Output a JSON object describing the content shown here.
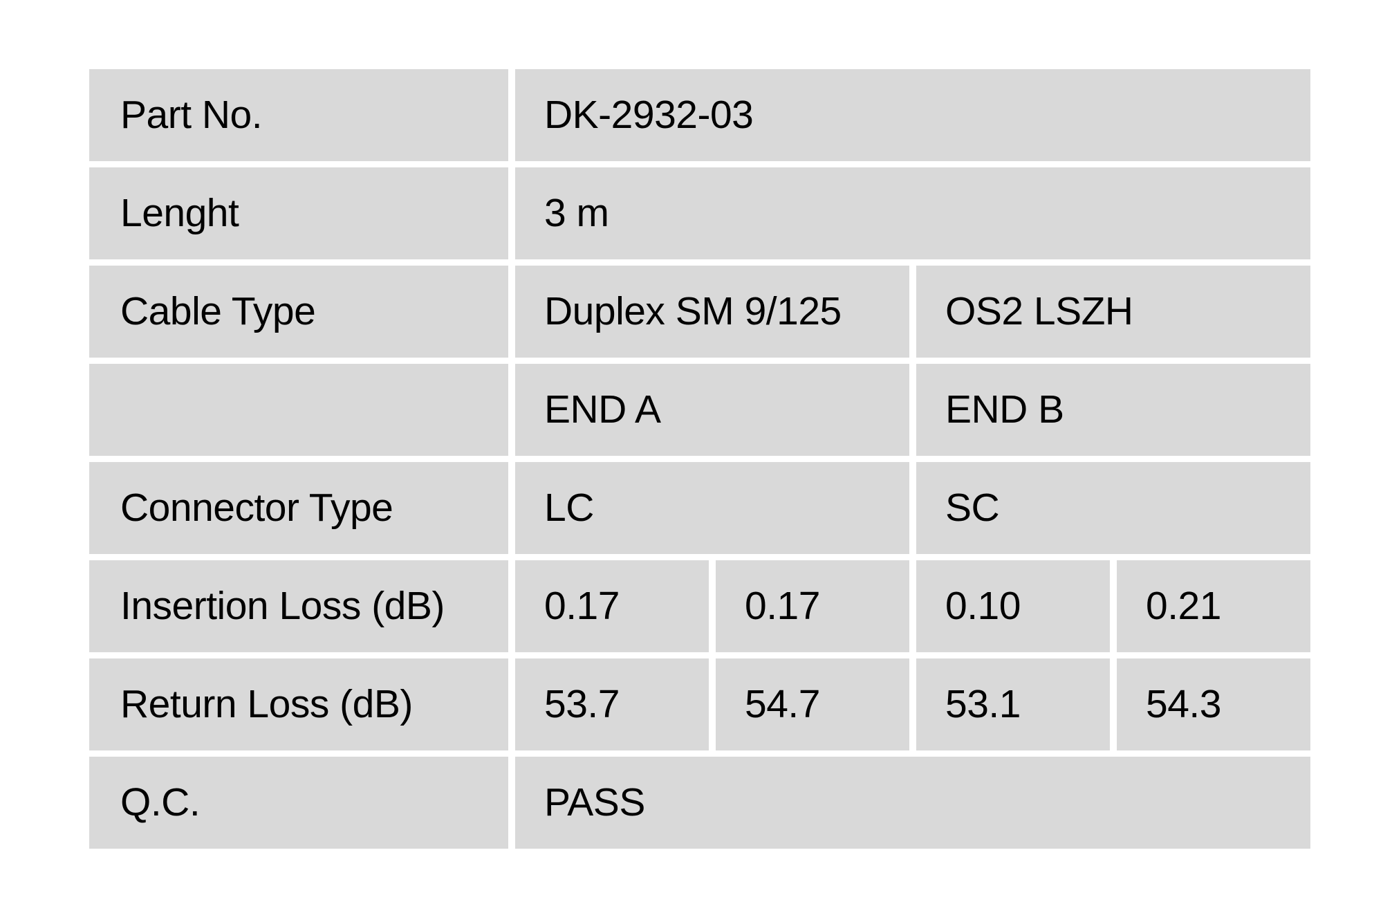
{
  "document": {
    "background_color": "#ffffff",
    "table": {
      "cell_background_color": "#d9d9d9",
      "text_color": "#000000",
      "rows": [
        {
          "label": "Part No.",
          "values": [
            "DK-2932-03"
          ]
        },
        {
          "label": "Lenght",
          "values": [
            "3 m"
          ]
        },
        {
          "label": "Cable Type",
          "values": [
            "Duplex SM 9/125",
            "OS2 LSZH"
          ]
        },
        {
          "label": "",
          "values": [
            "END A",
            "END B"
          ]
        },
        {
          "label": "Connector Type",
          "values": [
            "LC",
            "SC"
          ]
        },
        {
          "label": "Insertion Loss (dB)",
          "values": [
            "0.17",
            "0.17",
            "0.10",
            "0.21"
          ]
        },
        {
          "label": "Return Loss (dB)",
          "values": [
            "53.7",
            "54.7",
            "53.1",
            "54.3"
          ]
        },
        {
          "label": "Q.C.",
          "values": [
            "PASS"
          ]
        }
      ]
    }
  }
}
